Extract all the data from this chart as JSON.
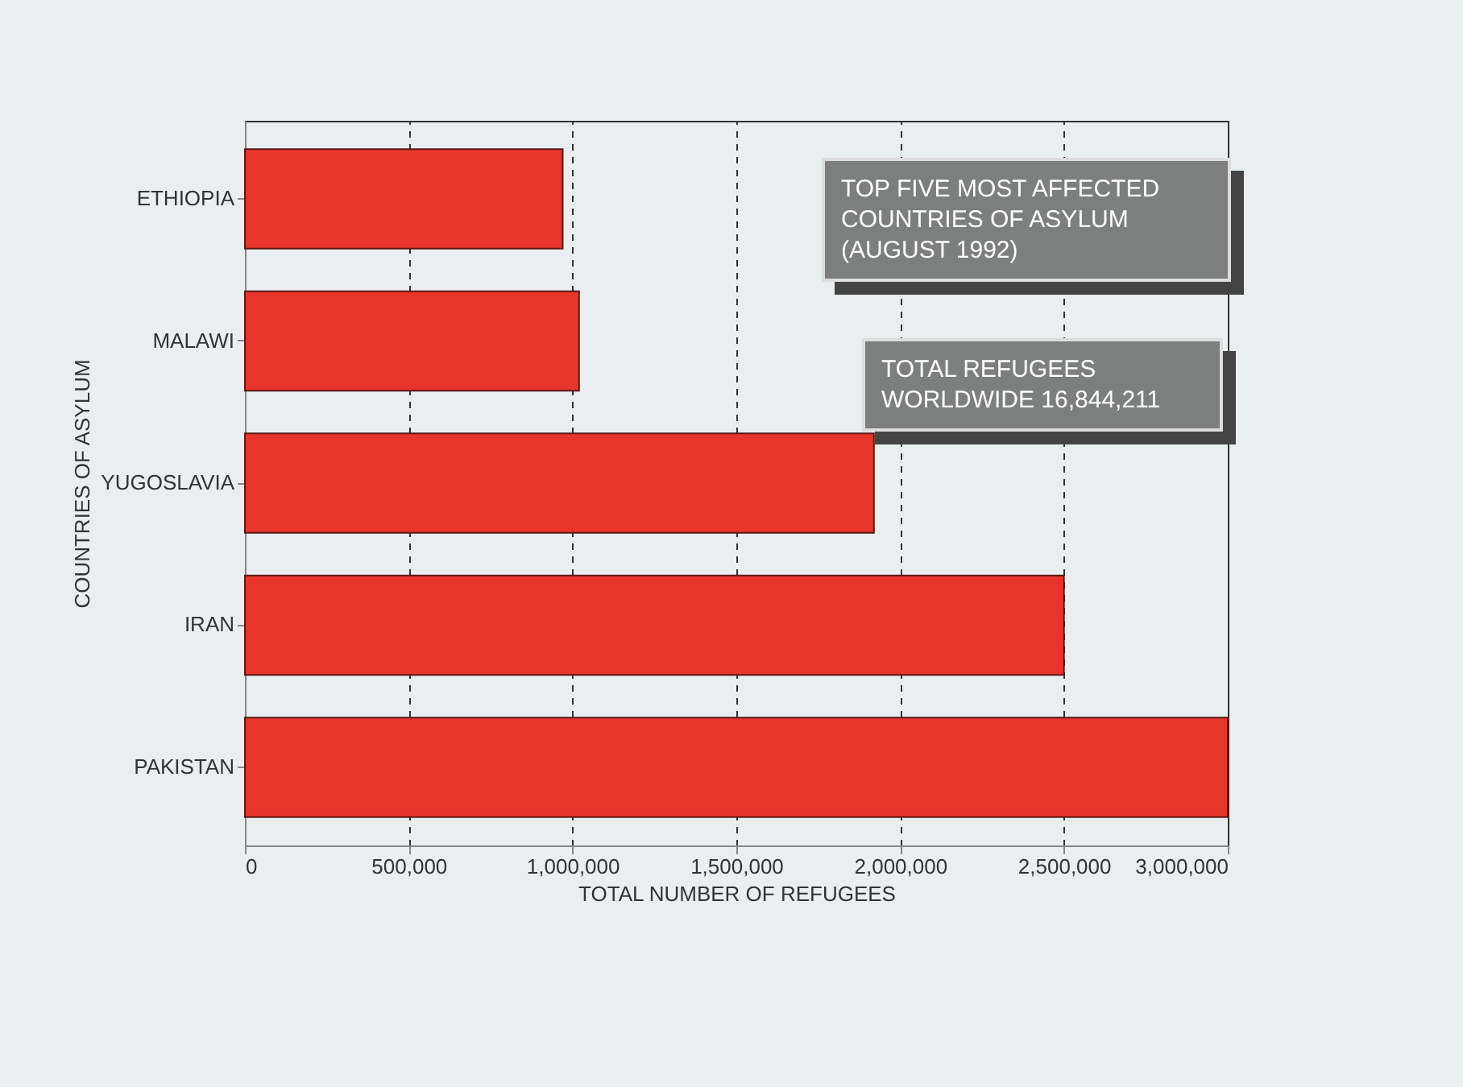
{
  "chart_data": {
    "type": "bar",
    "orientation": "horizontal",
    "title": "TOP FIVE MOST AFFECTED COUNTRIES OF ASYLUM (AUGUST 1992)",
    "annotations": [
      "TOTAL REFUGEES WORLDWIDE 16,844,211"
    ],
    "xlabel": "TOTAL NUMBER OF REFUGEES",
    "ylabel": "COUNTRIES OF ASYLUM",
    "categories": [
      "ETHIOPIA",
      "MALAWI",
      "YUGOSLAVIA",
      "IRAN",
      "PAKISTAN"
    ],
    "values": [
      970000,
      1020000,
      1920000,
      2500000,
      3000000
    ],
    "color": "#e8352b",
    "xlim": [
      0,
      3000000
    ],
    "xticks": [
      0,
      {
        "value": 500000,
        "label": "500,000"
      },
      {
        "value": 1000000,
        "label": "1,000,000"
      },
      {
        "value": 1500000,
        "label": "1,500,000"
      },
      {
        "value": 2000000,
        "label": "2,000,000"
      },
      {
        "value": 2500000,
        "label": "2,500,000"
      },
      {
        "value": 3000000,
        "label": "3,000,000"
      }
    ],
    "grid": "x"
  }
}
